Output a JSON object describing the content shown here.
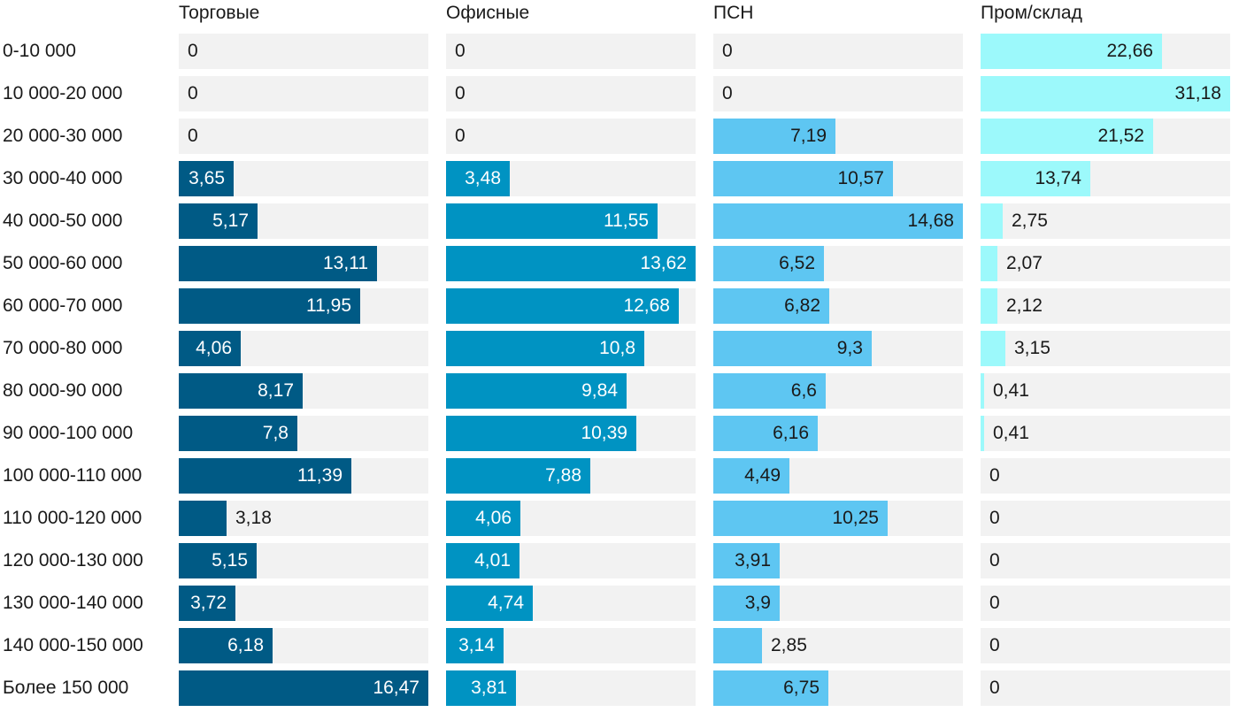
{
  "chart_data": {
    "type": "bar",
    "orientation": "horizontal",
    "categories": [
      "0-10 000",
      "10 000-20 000",
      "20 000-30 000",
      "30 000-40 000",
      "40 000-50 000",
      "50 000-60 000",
      "60 000-70 000",
      "70 000-80 000",
      "80 000-90 000",
      "90 000-100 000",
      "100 000-110 000",
      "110 000-120 000",
      "120 000-130 000",
      "130 000-140 000",
      "140 000-150 000",
      "Более 150 000"
    ],
    "series": [
      {
        "name": "Торговые",
        "color": "#005a85",
        "xlim": [
          0,
          16.47
        ],
        "values": [
          0,
          0,
          0,
          3.65,
          5.17,
          13.11,
          11.95,
          4.06,
          8.17,
          7.8,
          11.39,
          3.18,
          5.15,
          3.72,
          6.18,
          16.47
        ],
        "labels": [
          "0",
          "0",
          "0",
          "3,65",
          "5,17",
          "13,11",
          "11,95",
          "4,06",
          "8,17",
          "7,8",
          "11,39",
          "3,18",
          "5,15",
          "3,72",
          "6,18",
          "16,47"
        ],
        "label_color": "#ffffff"
      },
      {
        "name": "Офисные",
        "color": "#0093c2",
        "xlim": [
          0,
          13.62
        ],
        "values": [
          0,
          0,
          0,
          3.48,
          11.55,
          13.62,
          12.68,
          10.8,
          9.84,
          10.39,
          7.88,
          4.06,
          4.01,
          4.74,
          3.14,
          3.81
        ],
        "labels": [
          "0",
          "0",
          "0",
          "3,48",
          "11,55",
          "13,62",
          "12,68",
          "10,8",
          "9,84",
          "10,39",
          "7,88",
          "4,06",
          "4,01",
          "4,74",
          "3,14",
          "3,81"
        ],
        "label_color": "#ffffff"
      },
      {
        "name": "ПСН",
        "color": "#5ec6f2",
        "xlim": [
          0,
          14.68
        ],
        "values": [
          0,
          0,
          7.19,
          10.57,
          14.68,
          6.52,
          6.82,
          9.3,
          6.6,
          6.16,
          4.49,
          10.25,
          3.91,
          3.9,
          2.85,
          6.75
        ],
        "labels": [
          "0",
          "0",
          "7,19",
          "10,57",
          "14,68",
          "6,52",
          "6,82",
          "9,3",
          "6,6",
          "6,16",
          "4,49",
          "10,25",
          "3,91",
          "3,9",
          "2,85",
          "6,75"
        ],
        "label_color": "#1a1a1a"
      },
      {
        "name": "Пром/склад",
        "color": "#9cf9fb",
        "xlim": [
          0,
          31.18
        ],
        "values": [
          22.66,
          31.18,
          21.52,
          13.74,
          2.75,
          2.07,
          2.12,
          3.15,
          0.41,
          0.41,
          0,
          0,
          0,
          0,
          0,
          0
        ],
        "labels": [
          "22,66",
          "31,18",
          "21,52",
          "13,74",
          "2,75",
          "2,07",
          "2,12",
          "3,15",
          "0,41",
          "0,41",
          "0",
          "0",
          "0",
          "0",
          "0",
          "0"
        ],
        "label_color": "#1a1a1a"
      }
    ],
    "title": "",
    "xlabel": "",
    "ylabel": "",
    "grid": false,
    "legend": "none"
  }
}
